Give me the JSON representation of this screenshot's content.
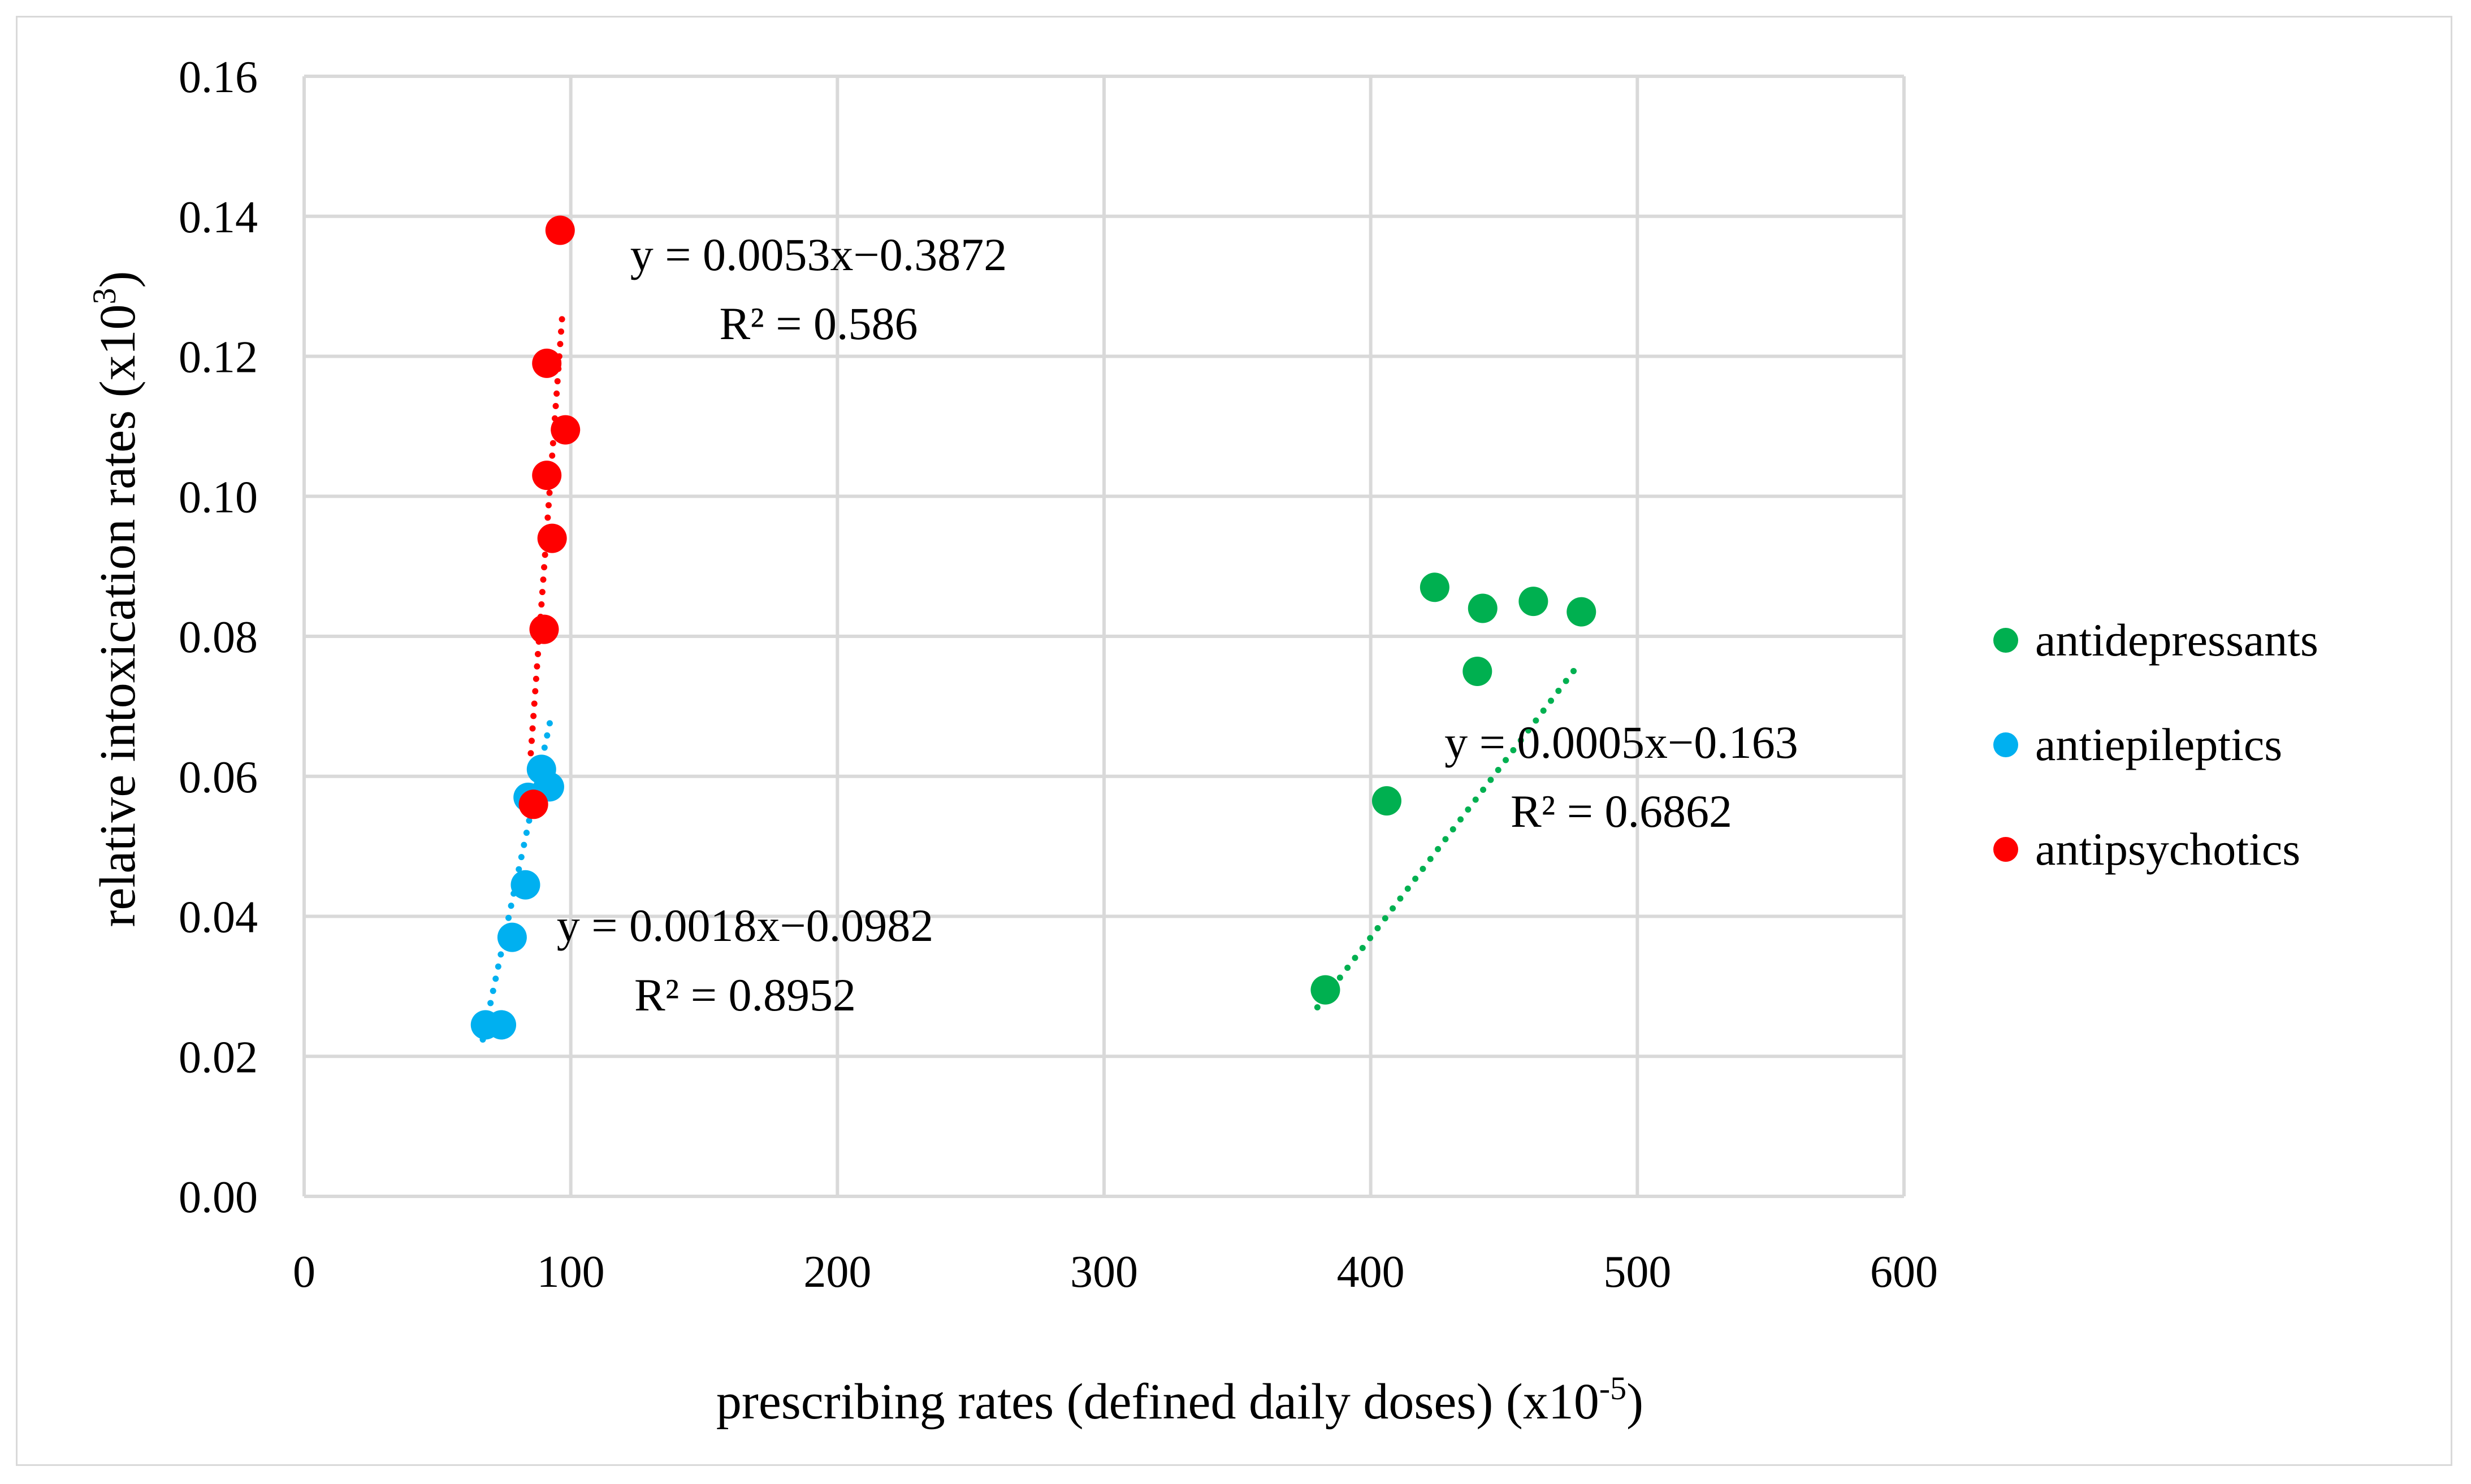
{
  "chart_data": {
    "type": "scatter",
    "title": "",
    "xlabel": "prescribing rates (defined daily doses) (x10",
    "xlabel_sup": "-5",
    "xlabel_end": ")",
    "ylabel": "relative intoxication rates (x10",
    "ylabel_sup": "3",
    "ylabel_end": ")",
    "xlim": [
      0,
      600
    ],
    "ylim": [
      0,
      0.16
    ],
    "x_ticks": [
      0,
      100,
      200,
      300,
      400,
      500,
      600
    ],
    "x_tick_labels": [
      "0",
      "100",
      "200",
      "300",
      "400",
      "500",
      "600"
    ],
    "y_ticks": [
      0,
      0.02,
      0.04,
      0.06,
      0.08,
      0.1,
      0.12,
      0.14,
      0.16
    ],
    "y_tick_labels": [
      "0.00",
      "0.02",
      "0.04",
      "0.06",
      "0.08",
      "0.10",
      "0.12",
      "0.14",
      "0.16"
    ],
    "grid": true,
    "legend_position": "right",
    "series": [
      {
        "name": "antidepressants",
        "color": "#00b050",
        "points": [
          [
            383,
            0.0295
          ],
          [
            406,
            0.0565
          ],
          [
            424,
            0.087
          ],
          [
            440,
            0.075
          ],
          [
            442,
            0.084
          ],
          [
            461,
            0.085
          ],
          [
            479,
            0.0835
          ]
        ],
        "trendline": {
          "x": [
            380,
            478
          ],
          "slope": 0.0005,
          "intercept": -0.163
        },
        "equation": "y = 0.0005x−0.163",
        "r2": "R² = 0.6862"
      },
      {
        "name": "antiepileptics",
        "color": "#00b0f0",
        "points": [
          [
            68,
            0.0245
          ],
          [
            74,
            0.0245
          ],
          [
            78,
            0.037
          ],
          [
            83,
            0.0445
          ],
          [
            84,
            0.057
          ],
          [
            89,
            0.061
          ],
          [
            92,
            0.0585
          ]
        ],
        "trendline": {
          "x": [
            67,
            93
          ],
          "slope": 0.0018,
          "intercept": -0.0982
        },
        "equation": "y = 0.0018x−0.0982",
        "r2": "R² = 0.8952"
      },
      {
        "name": "antipsychotics",
        "color": "#ff0000",
        "points": [
          [
            86,
            0.056
          ],
          [
            90,
            0.081
          ],
          [
            91,
            0.103
          ],
          [
            91,
            0.119
          ],
          [
            93,
            0.094
          ],
          [
            96,
            0.138
          ],
          [
            98,
            0.1095
          ]
        ],
        "trendline": {
          "x": [
            85,
            97
          ],
          "slope": 0.0053,
          "intercept": -0.3872
        },
        "equation": "y = 0.0053x−0.3872",
        "r2": "R² = 0.586"
      }
    ]
  }
}
